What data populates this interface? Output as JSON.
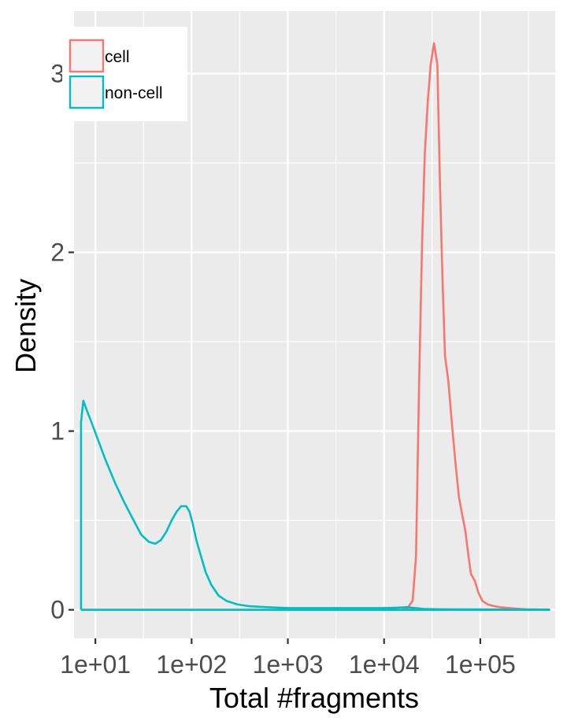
{
  "chart_data": {
    "type": "line",
    "xlabel": "Total #fragments",
    "ylabel": "Density",
    "x_scale": "log10",
    "xlim": [
      6.0,
      600000.0
    ],
    "ylim": [
      -0.16,
      3.35
    ],
    "x_ticks": [
      {
        "value": 10,
        "label": "1e+01"
      },
      {
        "value": 100,
        "label": "1e+02"
      },
      {
        "value": 1000,
        "label": "1e+03"
      },
      {
        "value": 10000,
        "label": "1e+04"
      },
      {
        "value": 100000,
        "label": "1e+05"
      }
    ],
    "y_ticks": [
      {
        "value": 0,
        "label": "0"
      },
      {
        "value": 1,
        "label": "1"
      },
      {
        "value": 2,
        "label": "2"
      },
      {
        "value": 3,
        "label": "3"
      }
    ],
    "grid": true,
    "legend": {
      "position": "top-left"
    },
    "series": [
      {
        "name": "cell",
        "color": "#F8766D",
        "x": [
          7.1,
          15000,
          17500,
          19800,
          21500,
          23000,
          24700,
          26500,
          28500,
          30500,
          33000,
          35800,
          38000,
          40500,
          43000,
          46500,
          50500,
          55000,
          60000,
          65000,
          70000,
          75000,
          80000,
          88000,
          95000,
          105000,
          120000,
          140000,
          160000,
          200000,
          300000,
          520000,
          520000,
          7.1
        ],
        "y": [
          0,
          0,
          0.01,
          0.05,
          0.3,
          1.2,
          2.0,
          2.55,
          2.85,
          3.05,
          3.17,
          3.05,
          2.4,
          1.85,
          1.42,
          1.28,
          1.05,
          0.83,
          0.63,
          0.53,
          0.44,
          0.31,
          0.2,
          0.16,
          0.1,
          0.05,
          0.03,
          0.02,
          0.015,
          0.01,
          0.003,
          0.001,
          0,
          0
        ]
      },
      {
        "name": "non-cell",
        "color": "#00BFC4",
        "x": [
          7.1,
          7.1,
          7.5,
          8.1,
          9.1,
          10.5,
          12.5,
          16,
          20,
          25,
          30,
          36,
          42,
          48,
          55,
          62,
          70,
          78,
          88,
          95,
          103,
          112,
          125,
          140,
          160,
          190,
          230,
          300,
          400,
          600,
          1000,
          3000,
          10000,
          14000,
          17000,
          21000,
          26000,
          40000,
          100000,
          520000,
          520000,
          7.1
        ],
        "y": [
          0,
          1.05,
          1.17,
          1.12,
          1.05,
          0.96,
          0.85,
          0.71,
          0.6,
          0.5,
          0.42,
          0.38,
          0.37,
          0.39,
          0.44,
          0.5,
          0.55,
          0.58,
          0.58,
          0.55,
          0.48,
          0.39,
          0.3,
          0.21,
          0.14,
          0.08,
          0.05,
          0.03,
          0.02,
          0.015,
          0.01,
          0.01,
          0.01,
          0.012,
          0.015,
          0.01,
          0.005,
          0.003,
          0.002,
          0.001,
          0,
          0
        ]
      }
    ]
  }
}
